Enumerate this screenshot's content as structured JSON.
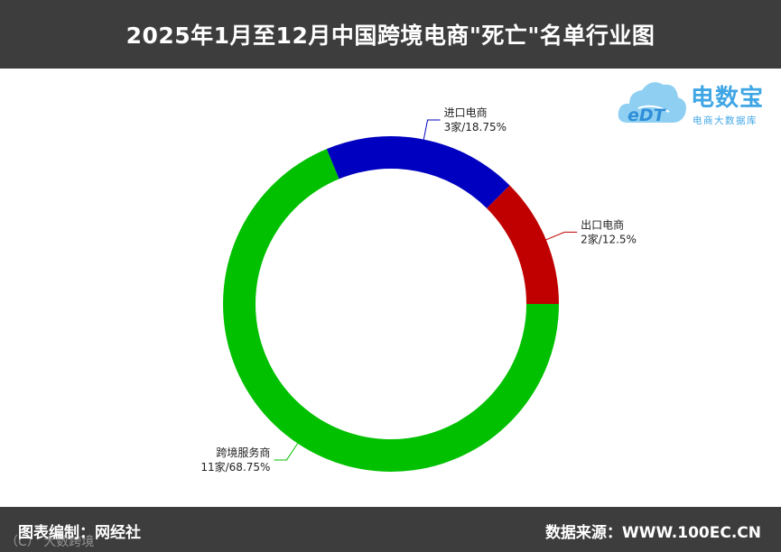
{
  "header": {
    "title": "2025年1月至12月中国跨境电商\"死亡\"名单行业图"
  },
  "logo": {
    "brand": "电数宝",
    "tagline": "电商大数据库",
    "mark": "eDT"
  },
  "footer": {
    "left": "图表编制：网经社",
    "right": "数据来源：WWW.100EC.CN",
    "watermark": "（C） 大数跨境"
  },
  "chart_data": {
    "type": "pie",
    "donut": true,
    "title": "2025年1月至12月中国跨境电商\"死亡\"名单行业图",
    "unit": "家",
    "slices": [
      {
        "name": "出口电商",
        "value": 2,
        "percent": "12.5%",
        "label": "2家/12.5%",
        "color": "#c00000"
      },
      {
        "name": "跨境服务商",
        "value": 11,
        "percent": "68.75%",
        "label": "11家/68.75%",
        "color": "#00c000"
      },
      {
        "name": "进口电商",
        "value": 3,
        "percent": "18.75%",
        "label": "3家/18.75%",
        "color": "#0000c0"
      }
    ]
  }
}
